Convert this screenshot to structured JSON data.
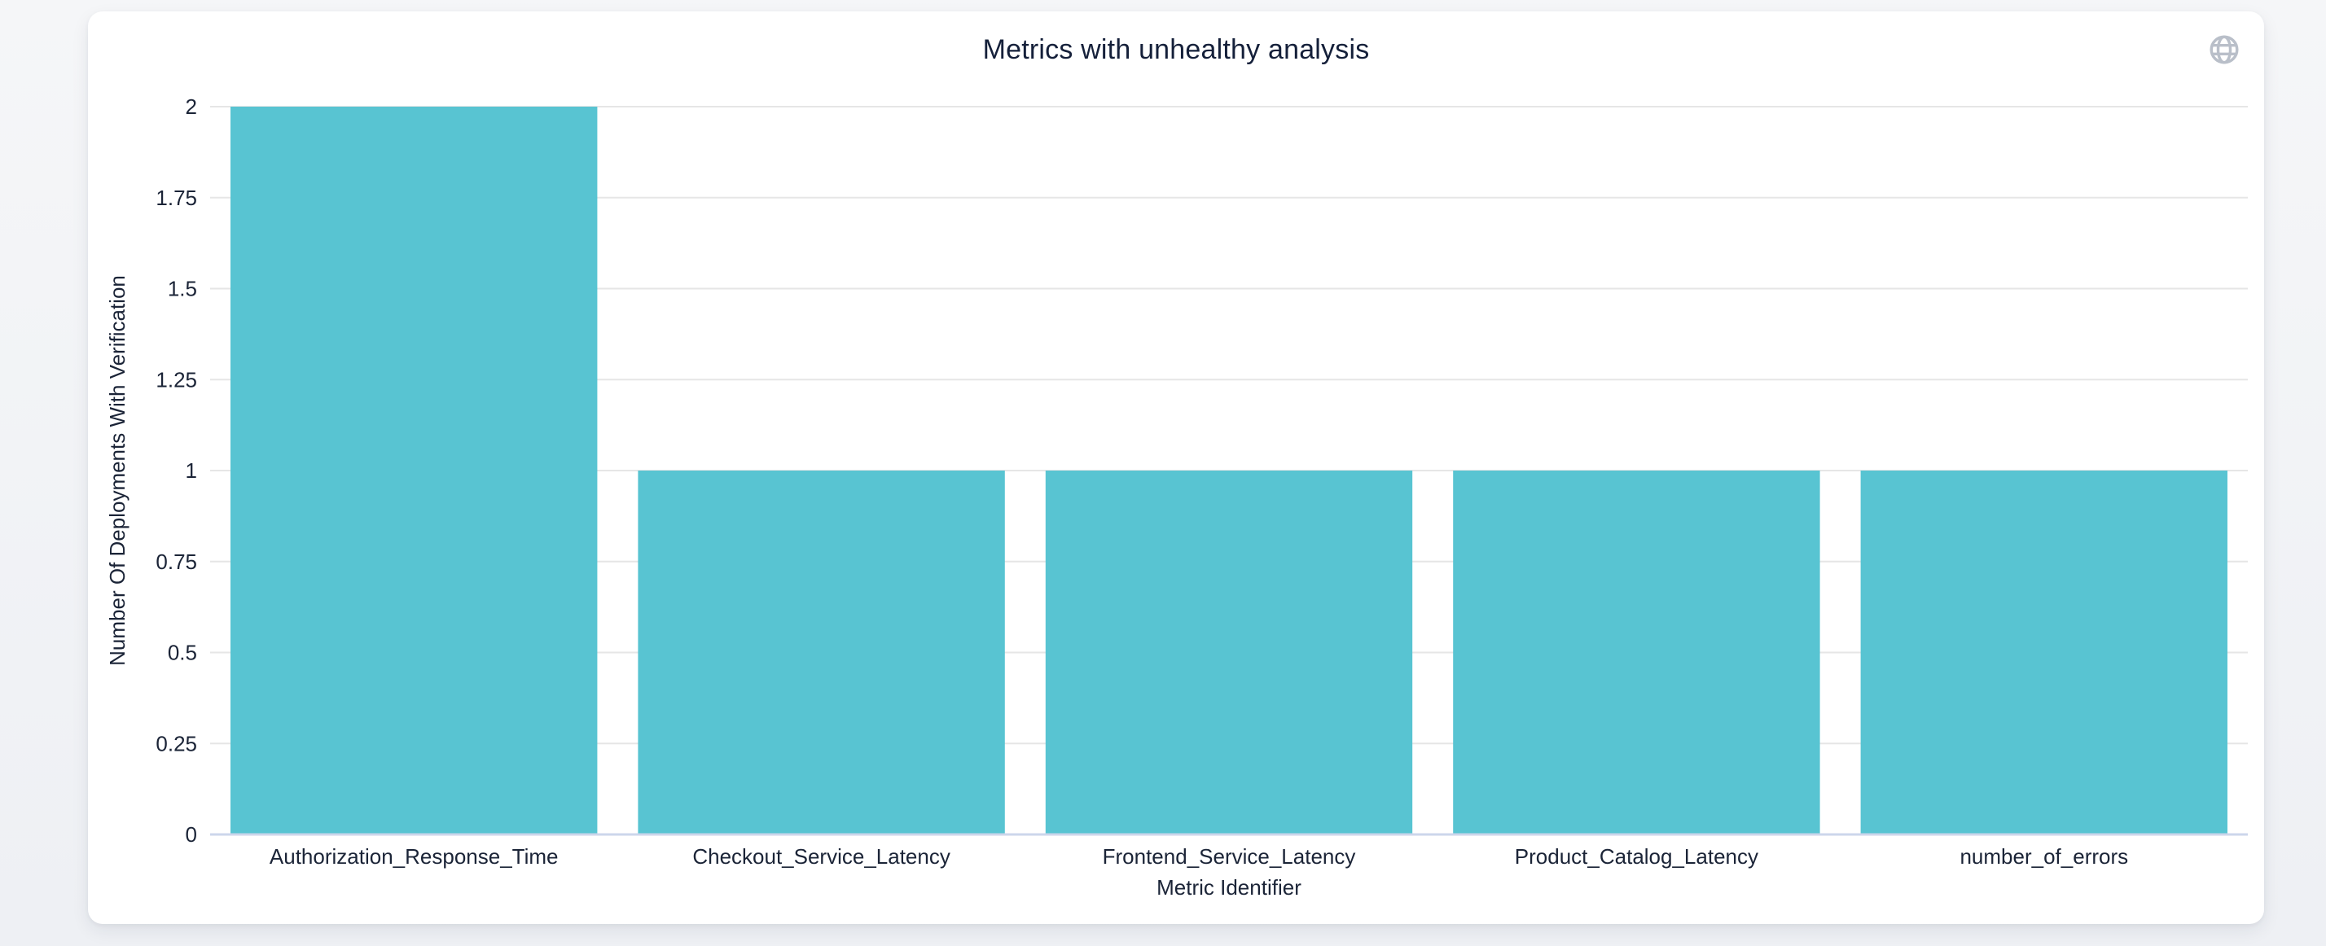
{
  "header": {
    "title": "Metrics with unhealthy analysis"
  },
  "icons": {
    "globe": {
      "name": "globe-icon",
      "color": "#B9BFC9"
    }
  },
  "colors": {
    "page_bg": "#F4F5F7",
    "card_bg": "#FFFFFF",
    "bar": "#58C4D2",
    "grid": "#E6E6E6",
    "axis_line": "#CCD6EB",
    "text": "#1B2437"
  },
  "chart_data": {
    "type": "bar",
    "title": "Metrics with unhealthy analysis",
    "categories": [
      "Authorization_Response_Time",
      "Checkout_Service_Latency",
      "Frontend_Service_Latency",
      "Product_Catalog_Latency",
      "number_of_errors"
    ],
    "values": [
      2,
      1,
      1,
      1,
      1
    ],
    "xlabel": "Metric Identifier",
    "ylabel": "Number Of Deployments With Verification",
    "ylim": [
      0,
      2
    ],
    "ytick_step": 0.25,
    "yticks": [
      "0",
      "0.25",
      "0.5",
      "0.75",
      "1",
      "1.25",
      "1.5",
      "1.75",
      "2"
    ],
    "grid": true,
    "legend": "none",
    "bar_color": "#58C4D2"
  }
}
